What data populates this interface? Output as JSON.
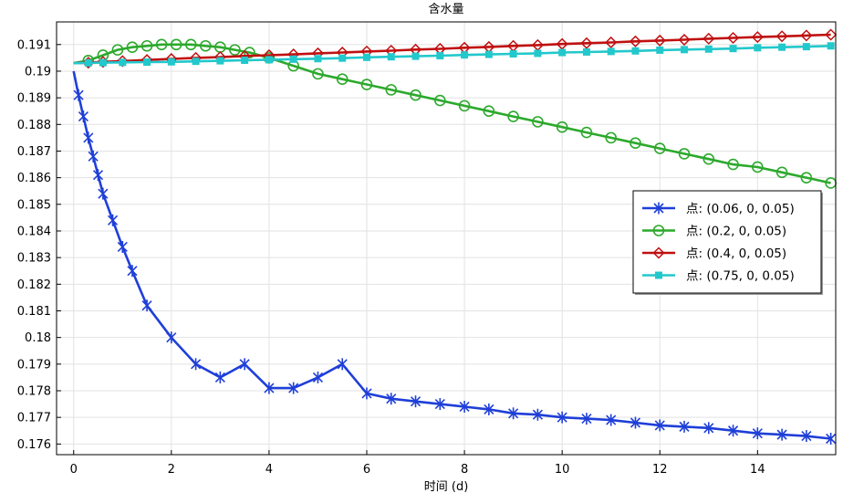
{
  "chart_data": {
    "type": "line",
    "title": "含水量",
    "xlabel": "时间 (d)",
    "ylabel": "",
    "xlim": [
      -0.35,
      15.6
    ],
    "ylim": [
      0.1756,
      0.19185
    ],
    "grid": true,
    "legend_position": "right",
    "x_ticks": [
      0,
      2,
      4,
      6,
      8,
      10,
      12,
      14
    ],
    "y_ticks": [
      0.176,
      0.177,
      0.178,
      0.179,
      0.18,
      0.181,
      0.182,
      0.183,
      0.184,
      0.185,
      0.186,
      0.187,
      0.188,
      0.189,
      0.19,
      0.191
    ],
    "x_tick_labels": [
      "0",
      "2",
      "4",
      "6",
      "8",
      "10",
      "12",
      "14"
    ],
    "y_tick_labels": [
      "0.176",
      "0.177",
      "0.178",
      "0.179",
      "0.18",
      "0.181",
      "0.182",
      "0.183",
      "0.184",
      "0.185",
      "0.186",
      "0.187",
      "0.188",
      "0.189",
      "0.19",
      "0.191"
    ],
    "series": [
      {
        "name": "点: (0.06, 0, 0.05)",
        "color": "#1f3fd8",
        "marker": "asterisk",
        "x": [
          0.0,
          0.1,
          0.2,
          0.3,
          0.4,
          0.5,
          0.6,
          0.8,
          1.0,
          1.2,
          1.5,
          2.0,
          2.5,
          3.0,
          3.5,
          4.0,
          4.5,
          5.0,
          5.5,
          6.0,
          6.5,
          7.0,
          7.5,
          8.0,
          8.5,
          9.0,
          9.5,
          10.0,
          10.5,
          11.0,
          11.5,
          12.0,
          12.5,
          13.0,
          13.5,
          14.0,
          14.5,
          15.0,
          15.5
        ],
        "y": [
          0.19,
          0.1891,
          0.1883,
          0.1875,
          0.1868,
          0.1861,
          0.1854,
          0.1844,
          0.1834,
          0.1825,
          0.1812,
          0.18,
          0.179,
          0.1785,
          0.179,
          0.1781,
          0.1781,
          0.1785,
          0.179,
          0.1779,
          0.1777,
          0.1776,
          0.1775,
          0.1774,
          0.1773,
          0.17715,
          0.1771,
          0.177,
          0.17695,
          0.1769,
          0.1768,
          0.1767,
          0.17665,
          0.1766,
          0.1765,
          0.1764,
          0.17635,
          0.1763,
          0.1762
        ]
      },
      {
        "name": "点: (0.2, 0, 0.05)",
        "color": "#2ca92c",
        "marker": "circle",
        "x": [
          0.0,
          0.3,
          0.6,
          0.9,
          1.2,
          1.5,
          1.8,
          2.1,
          2.4,
          2.7,
          3.0,
          3.3,
          3.6,
          4.0,
          4.5,
          5.0,
          5.5,
          6.0,
          6.5,
          7.0,
          7.5,
          8.0,
          8.5,
          9.0,
          9.5,
          10.0,
          10.5,
          11.0,
          11.5,
          12.0,
          12.5,
          13.0,
          13.5,
          14.0,
          14.5,
          15.0,
          15.5
        ],
        "y": [
          0.1903,
          0.1904,
          0.1906,
          0.1908,
          0.1909,
          0.19095,
          0.191,
          0.191,
          0.191,
          0.19095,
          0.1909,
          0.1908,
          0.1907,
          0.1905,
          0.1902,
          0.1899,
          0.1897,
          0.1895,
          0.1893,
          0.1891,
          0.1889,
          0.1887,
          0.1885,
          0.1883,
          0.1881,
          0.1879,
          0.1877,
          0.1875,
          0.1873,
          0.1871,
          0.1869,
          0.1867,
          0.1865,
          0.1864,
          0.1862,
          0.186,
          0.1858
        ]
      },
      {
        "name": "点: (0.4, 0, 0.05)",
        "color": "#c01010",
        "marker": "diamond",
        "x": [
          0.0,
          0.3,
          0.6,
          1.0,
          1.5,
          2.0,
          2.5,
          3.0,
          3.5,
          4.0,
          4.5,
          5.0,
          5.5,
          6.0,
          6.5,
          7.0,
          7.5,
          8.0,
          8.5,
          9.0,
          9.5,
          10.0,
          10.5,
          11.0,
          11.5,
          12.0,
          12.5,
          13.0,
          13.5,
          14.0,
          14.5,
          15.0,
          15.5
        ],
        "y": [
          0.1903,
          0.19032,
          0.19035,
          0.19038,
          0.19042,
          0.19046,
          0.1905,
          0.19053,
          0.19057,
          0.1906,
          0.19063,
          0.19067,
          0.1907,
          0.19074,
          0.19077,
          0.19081,
          0.19084,
          0.19088,
          0.19091,
          0.19095,
          0.19098,
          0.19102,
          0.19105,
          0.19108,
          0.19112,
          0.19115,
          0.19118,
          0.19122,
          0.19125,
          0.19128,
          0.19131,
          0.19134,
          0.19137
        ]
      },
      {
        "name": "点: (0.75, 0, 0.05)",
        "color": "#22c8cc",
        "marker": "square",
        "x": [
          0.0,
          0.3,
          0.6,
          1.0,
          1.5,
          2.0,
          2.5,
          3.0,
          3.5,
          4.0,
          4.5,
          5.0,
          5.5,
          6.0,
          6.5,
          7.0,
          7.5,
          8.0,
          8.5,
          9.0,
          9.5,
          10.0,
          10.5,
          11.0,
          11.5,
          12.0,
          12.5,
          13.0,
          13.5,
          14.0,
          14.5,
          15.0,
          15.5
        ],
        "y": [
          0.1903,
          0.19031,
          0.19032,
          0.19033,
          0.19034,
          0.19035,
          0.19037,
          0.19039,
          0.19041,
          0.19043,
          0.19045,
          0.19047,
          0.19049,
          0.19052,
          0.19054,
          0.19056,
          0.19058,
          0.19061,
          0.19063,
          0.19065,
          0.19067,
          0.1907,
          0.19072,
          0.19074,
          0.19076,
          0.19079,
          0.19081,
          0.19083,
          0.19085,
          0.19088,
          0.1909,
          0.19092,
          0.19095
        ]
      }
    ]
  }
}
